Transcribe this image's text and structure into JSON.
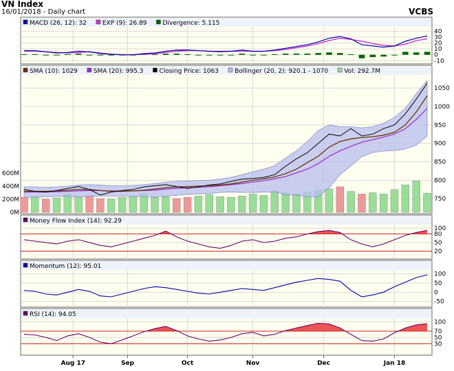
{
  "header": {
    "title": "VN Index",
    "subtitle": "16/01/2018 - Daily chart",
    "brand": "VCBS"
  },
  "colors": {
    "panel_bg": "#FFFFF0",
    "legend_bg": "#EEF2FA",
    "grid": "#D8D8D8",
    "macd": "#0000AA",
    "signal": "#CC33CC",
    "divergence": "#006600",
    "sma10": "#663300",
    "sma20": "#9933CC",
    "close": "#000000",
    "bollinger_fill": "#B8BEEE",
    "volume": "#99DD99",
    "volume_down": "#EE9999",
    "mfi": "#660066",
    "momentum": "#0000AA",
    "rsi": "#660066",
    "overbought_fill": "#EE5555",
    "ref_line": "#CC2222"
  },
  "chart_data": [
    {
      "id": "macd",
      "type": "line",
      "legend": [
        {
          "label": "MACD (26, 12): 32",
          "color": "#0000AA"
        },
        {
          "label": "EXP (9): 26.89",
          "color": "#CC33CC"
        },
        {
          "label": "Divergence: 5.115",
          "color": "#006600"
        }
      ],
      "yticks": [
        "40",
        "30",
        "20",
        "10",
        "0",
        "-10"
      ],
      "ylim": [
        -12,
        44
      ],
      "macd": [
        7,
        7,
        5,
        3,
        4,
        6,
        5,
        2,
        1,
        0,
        0,
        2,
        3,
        6,
        8,
        8,
        7,
        6,
        5,
        6,
        8,
        6,
        6,
        8,
        11,
        14,
        17,
        22,
        28,
        31,
        27,
        17,
        15,
        13,
        15,
        23,
        28,
        32
      ],
      "signal": [
        6,
        6,
        5,
        4,
        3,
        4,
        5,
        3,
        1,
        0,
        0,
        1,
        2,
        4,
        6,
        7,
        7,
        6,
        6,
        6,
        6,
        6,
        6,
        7,
        9,
        12,
        15,
        19,
        24,
        28,
        26,
        23,
        19,
        16,
        15,
        18,
        24,
        27
      ],
      "divergence": [
        1,
        1,
        0,
        -1,
        1,
        2,
        0,
        -1,
        0,
        0,
        0,
        1,
        1,
        2,
        2,
        1,
        0,
        0,
        -1,
        0,
        2,
        0,
        0,
        1,
        2,
        2,
        2,
        3,
        4,
        3,
        1,
        -6,
        -4,
        -3,
        0,
        5,
        4,
        5
      ]
    },
    {
      "id": "price",
      "type": "line",
      "legend": [
        {
          "label": "SMA (10): 1029",
          "color": "#663300"
        },
        {
          "label": "SMA (20): 995.3",
          "color": "#9933CC"
        },
        {
          "label": "Closing Price: 1063",
          "color": "#000000"
        },
        {
          "label": "Bollinger (20, 2): 920.1 - 1070",
          "color": "#B8BEEE"
        },
        {
          "label": "Vol: 292.7M",
          "color": "#99DD99"
        }
      ],
      "yticks": [
        "1050",
        "1000",
        "950",
        "900",
        "850",
        "800",
        "750"
      ],
      "ylim": [
        715,
        1080
      ],
      "volume_ticks": [
        "600M",
        "400M",
        "200M",
        "0M"
      ],
      "volume_max": 630,
      "close": [
        775,
        770,
        768,
        772,
        778,
        783,
        775,
        760,
        768,
        772,
        775,
        782,
        785,
        788,
        783,
        778,
        782,
        787,
        790,
        797,
        803,
        805,
        808,
        815,
        838,
        858,
        875,
        900,
        925,
        920,
        940,
        920,
        925,
        940,
        950,
        980,
        1020,
        1063
      ],
      "sma10": [
        770,
        770,
        770,
        771,
        773,
        775,
        775,
        772,
        770,
        770,
        771,
        773,
        776,
        780,
        782,
        783,
        784,
        785,
        787,
        790,
        795,
        800,
        804,
        809,
        818,
        830,
        848,
        865,
        890,
        905,
        912,
        916,
        918,
        922,
        930,
        950,
        985,
        1029
      ],
      "sma20": [
        768,
        768,
        768,
        769,
        770,
        771,
        772,
        772,
        771,
        771,
        771,
        772,
        773,
        776,
        778,
        780,
        781,
        782,
        785,
        788,
        791,
        795,
        799,
        804,
        810,
        820,
        830,
        845,
        865,
        880,
        892,
        903,
        910,
        917,
        925,
        940,
        965,
        995
      ],
      "bollinger_upper": [
        782,
        782,
        781,
        782,
        784,
        787,
        788,
        787,
        785,
        785,
        786,
        788,
        791,
        795,
        797,
        798,
        799,
        800,
        803,
        808,
        815,
        823,
        830,
        840,
        860,
        880,
        905,
        935,
        950,
        945,
        945,
        942,
        945,
        955,
        970,
        995,
        1035,
        1070
      ],
      "bollinger_lower": [
        754,
        754,
        755,
        756,
        756,
        755,
        756,
        757,
        757,
        757,
        756,
        756,
        755,
        757,
        759,
        762,
        763,
        764,
        767,
        768,
        767,
        767,
        768,
        768,
        760,
        760,
        755,
        755,
        780,
        815,
        839,
        864,
        875,
        879,
        880,
        885,
        895,
        920.1
      ],
      "volume": [
        230,
        250,
        200,
        220,
        280,
        240,
        260,
        210,
        200,
        230,
        250,
        280,
        230,
        240,
        210,
        230,
        250,
        270,
        240,
        230,
        250,
        280,
        260,
        330,
        300,
        280,
        310,
        340,
        360,
        390,
        320,
        280,
        300,
        280,
        350,
        420,
        480,
        292.7
      ],
      "volume_up": [
        false,
        true,
        false,
        true,
        true,
        true,
        false,
        false,
        true,
        true,
        true,
        true,
        true,
        true,
        false,
        false,
        true,
        true,
        true,
        true,
        true,
        true,
        true,
        true,
        true,
        true,
        true,
        true,
        true,
        false,
        true,
        false,
        true,
        true,
        true,
        true,
        true,
        true
      ]
    },
    {
      "id": "mfi",
      "type": "area",
      "legend": [
        {
          "label": "Money Flow Index (14): 92.29",
          "color": "#660066"
        }
      ],
      "yticks": [
        "100",
        "80",
        "50",
        "20"
      ],
      "ylim": [
        0,
        105
      ],
      "levels": [
        80,
        20
      ],
      "values": [
        60,
        55,
        50,
        45,
        55,
        60,
        50,
        40,
        35,
        45,
        55,
        65,
        75,
        90,
        70,
        55,
        45,
        35,
        30,
        40,
        55,
        60,
        50,
        55,
        65,
        70,
        80,
        88,
        92,
        85,
        60,
        45,
        35,
        45,
        60,
        75,
        85,
        92.29
      ]
    },
    {
      "id": "momentum",
      "type": "line",
      "legend": [
        {
          "label": "Momentum (12): 95.01",
          "color": "#0000AA"
        }
      ],
      "yticks": [
        "100",
        "50",
        "0",
        "-50"
      ],
      "ylim": [
        -70,
        110
      ],
      "values": [
        10,
        5,
        -10,
        -15,
        0,
        15,
        5,
        -20,
        -25,
        -10,
        5,
        20,
        30,
        25,
        15,
        5,
        -5,
        -10,
        0,
        10,
        20,
        15,
        10,
        25,
        40,
        55,
        65,
        75,
        70,
        60,
        10,
        -25,
        -15,
        0,
        30,
        55,
        80,
        95.01
      ]
    },
    {
      "id": "rsi",
      "type": "area",
      "legend": [
        {
          "label": "RSI (14): 94.05",
          "color": "#660066"
        }
      ],
      "yticks": [
        "100",
        "70",
        "50",
        "30"
      ],
      "ylim": [
        0,
        105
      ],
      "levels": [
        70,
        30
      ],
      "values": [
        60,
        58,
        50,
        40,
        55,
        62,
        50,
        35,
        30,
        42,
        55,
        68,
        78,
        85,
        72,
        55,
        45,
        38,
        42,
        50,
        62,
        66,
        55,
        60,
        72,
        80,
        88,
        95,
        93,
        80,
        60,
        40,
        38,
        45,
        65,
        80,
        90,
        94.05
      ]
    }
  ],
  "xaxis": {
    "labels": [
      "Aug 17",
      "Sep",
      "Oct",
      "Nov",
      "Dec",
      "Jan 18"
    ],
    "label_index": [
      4.5,
      9.5,
      15,
      21,
      27.5,
      34
    ]
  }
}
